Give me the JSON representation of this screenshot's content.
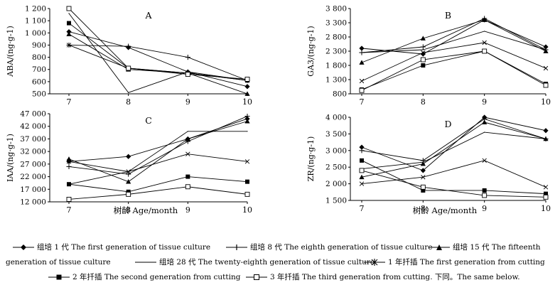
{
  "chart_data": [
    {
      "type": "line",
      "panel": "A",
      "ylabel": "ABA/(ng·g-1)",
      "xlabel": "",
      "x": [
        7,
        8,
        9,
        10
      ],
      "ylim": [
        500,
        1200
      ],
      "yticks": [
        500,
        600,
        700,
        800,
        900,
        1000,
        1100,
        1200
      ],
      "ytick_labels": [
        "500",
        "600",
        "700",
        "800",
        "900",
        "1 000",
        "1 100",
        "1 200"
      ],
      "series": [
        {
          "values": [
            1010,
            880,
            680,
            560
          ]
        },
        {
          "values": [
            900,
            890,
            800,
            610
          ]
        },
        {
          "values": [
            990,
            700,
            670,
            500
          ]
        },
        {
          "values": [
            1160,
            510,
            680,
            610
          ]
        },
        {
          "values": [
            900,
            710,
            670,
            610
          ]
        },
        {
          "values": [
            1080,
            710,
            670,
            610
          ]
        },
        {
          "values": [
            1200,
            710,
            660,
            620
          ]
        }
      ]
    },
    {
      "type": "line",
      "panel": "B",
      "ylabel": "GA3/(ng·g-1)",
      "xlabel": "",
      "x": [
        7,
        8,
        9,
        10
      ],
      "ylim": [
        800,
        3800
      ],
      "yticks": [
        800,
        1300,
        1800,
        2300,
        2800,
        3300,
        3800
      ],
      "ytick_labels": [
        "800",
        "1 300",
        "1 800",
        "2 300",
        "2 800",
        "3 300",
        "3 800"
      ],
      "series": [
        {
          "values": [
            2400,
            2200,
            3400,
            2450
          ]
        },
        {
          "values": [
            2250,
            2450,
            3450,
            2350
          ]
        },
        {
          "values": [
            1900,
            2750,
            3400,
            2300
          ]
        },
        {
          "values": [
            2250,
            2350,
            3000,
            2350
          ]
        },
        {
          "values": [
            1250,
            2250,
            2600,
            1700
          ]
        },
        {
          "values": [
            950,
            1800,
            2300,
            1150
          ]
        },
        {
          "values": [
            920,
            2000,
            2300,
            1100
          ]
        }
      ]
    },
    {
      "type": "line",
      "panel": "C",
      "ylabel": "IAA/(ng·g-1)",
      "xlabel": "",
      "x": [
        7,
        8,
        9,
        10
      ],
      "ylim": [
        12000,
        47000
      ],
      "yticks": [
        12000,
        17000,
        22000,
        27000,
        32000,
        37000,
        42000,
        47000
      ],
      "ytick_labels": [
        "12 000",
        "17 000",
        "22 000",
        "27 000",
        "32 000",
        "37 000",
        "42 000",
        "47 000"
      ],
      "series": [
        {
          "values": [
            28000,
            30000,
            37000,
            45000
          ]
        },
        {
          "values": [
            26000,
            23000,
            36000,
            46000
          ]
        },
        {
          "values": [
            29000,
            20000,
            37000,
            44000
          ]
        },
        {
          "values": [
            19000,
            24000,
            40000,
            40000
          ]
        },
        {
          "values": [
            28000,
            24000,
            31000,
            28000
          ]
        },
        {
          "values": [
            19000,
            16000,
            22000,
            20000
          ]
        },
        {
          "values": [
            13000,
            15000,
            18000,
            15000
          ]
        }
      ]
    },
    {
      "type": "line",
      "panel": "D",
      "ylabel": "ZR/(ng·g-1)",
      "xlabel": "",
      "x": [
        7,
        8,
        9,
        10
      ],
      "ylim": [
        1500,
        4000
      ],
      "yticks": [
        1500,
        2000,
        2500,
        3000,
        3500,
        4000
      ],
      "ytick_labels": [
        "1 500",
        "2 000",
        "2 500",
        "3 000",
        "3 500",
        "4 000"
      ],
      "series": [
        {
          "values": [
            3100,
            2400,
            4000,
            3600
          ]
        },
        {
          "values": [
            3000,
            2700,
            3950,
            3350
          ]
        },
        {
          "values": [
            2200,
            2600,
            3850,
            3350
          ]
        },
        {
          "values": [
            2450,
            2650,
            3550,
            3350
          ]
        },
        {
          "values": [
            2000,
            2200,
            2700,
            1900
          ]
        },
        {
          "values": [
            2700,
            1800,
            1800,
            1700
          ]
        },
        {
          "values": [
            2400,
            1900,
            1650,
            1600
          ]
        }
      ]
    }
  ],
  "x_axis_title": "树龄 Age/month",
  "legend": [
    {
      "marker": "diamond",
      "label": "组培 1 代 The first generation of tissue culture"
    },
    {
      "marker": "plus",
      "label": "组培 8 代 The eighth generation of tissue culture"
    },
    {
      "marker": "triangle",
      "label": "组培 15 代 The fifteenth",
      "continuation": "generation of tissue culture"
    },
    {
      "marker": "line",
      "label": "组培 28 代 The twenty-eighth generation of tissue culture"
    },
    {
      "marker": "star",
      "label": "1 年扦插 The first generation from cutting"
    },
    {
      "marker": "square",
      "label": "2 年扦插 The second generation from cutting"
    },
    {
      "marker": "open-square",
      "label": "3 年扦插 The third generation from cutting. 下同。The same below."
    }
  ]
}
